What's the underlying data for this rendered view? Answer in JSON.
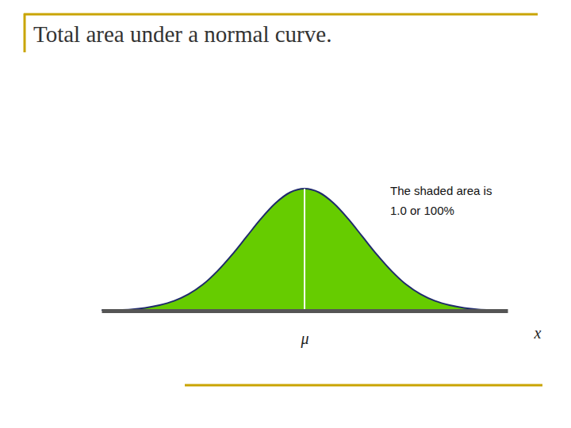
{
  "chart_data": {
    "type": "area",
    "title": "Total area under a normal curve.",
    "annotation": [
      "The shaded area is",
      "1.0 or 100%"
    ],
    "x_label": "x",
    "x": [
      -3.5,
      -3.25,
      -3,
      -2.75,
      -2.5,
      -2.25,
      -2,
      -1.75,
      -1.5,
      -1.25,
      -1,
      -0.75,
      -0.5,
      -0.25,
      0,
      0.25,
      0.5,
      0.75,
      1,
      1.25,
      1.5,
      1.75,
      2,
      2.25,
      2.5,
      2.75,
      3,
      3.25,
      3.5
    ],
    "values": [
      0.001,
      0.002,
      0.004,
      0.009,
      0.018,
      0.032,
      0.054,
      0.086,
      0.13,
      0.183,
      0.242,
      0.301,
      0.352,
      0.387,
      0.399,
      0.387,
      0.352,
      0.301,
      0.242,
      0.183,
      0.13,
      0.086,
      0.054,
      0.032,
      0.018,
      0.009,
      0.004,
      0.002,
      0.001
    ],
    "color": "#66cc00",
    "xlim": [
      -3.5,
      3.5
    ],
    "ylim": [
      0,
      0.42
    ],
    "xticks": [
      {
        "value": 0,
        "label": "μ"
      }
    ],
    "tick_labels": "x",
    "grid": false
  }
}
